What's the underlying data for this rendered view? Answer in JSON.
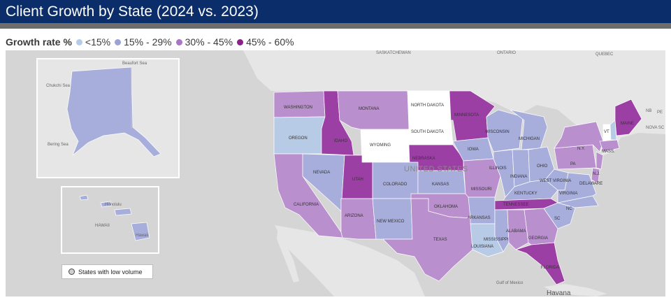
{
  "title": "Client Growth by State (2024 vs. 2023)",
  "legend": {
    "title": "Growth rate %",
    "items": [
      {
        "label": "<15%",
        "color": "#b5cce8"
      },
      {
        "label": "15% - 29%",
        "color": "#9aa3d2"
      },
      {
        "label": "30% - 45%",
        "color": "#a876c4"
      },
      {
        "label": "45% - 60%",
        "color": "#8b1f8b"
      }
    ]
  },
  "low_volume_label": "States with low volume",
  "colors": {
    "low_volume": "#ffffff",
    "t1": "#b8cbe6",
    "t2": "#a7aedb",
    "t3": "#b98fcd",
    "t4": "#9c3fa5",
    "land": "#e6e6e6",
    "water": "#d5d5d5"
  },
  "map": {
    "country_label": "UNITED STATES",
    "state_labels": {
      "washington": "WASHINGTON",
      "oregon": "OREGON",
      "idaho": "IDAHO",
      "montana": "MONTANA",
      "wyoming": "WYOMING",
      "north_dakota": "NORTH DAKOTA",
      "south_dakota": "SOUTH DAKOTA",
      "minnesota": "MINNESOTA",
      "nevada": "NEVADA",
      "utah": "UTAH",
      "colorado": "COLORADO",
      "kansas": "KANSAS",
      "nebraska": "NEBRASKA",
      "iowa": "IOWA",
      "wisconsin": "WISCONSIN",
      "michigan": "MICHIGAN",
      "illinois": "ILLINOIS",
      "indiana": "INDIANA",
      "ohio": "OHIO",
      "missouri": "MISSOURI",
      "kentucky": "KENTUCKY",
      "west_virginia": "WEST VIRGINIA",
      "virginia": "VIRGINIA",
      "pennsylvania": "PA",
      "new_york": "N.Y.",
      "maine": "MAINE",
      "vermont": "VT",
      "massachusetts": "MASS.",
      "new_jersey": "N.J.",
      "delaware": "DELAWARE",
      "california": "CALIFORNIA",
      "arizona": "ARIZONA",
      "new_mexico": "NEW MEXICO",
      "oklahoma": "OKLAHOMA",
      "texas": "TEXAS",
      "arkansas": "ARKANSAS",
      "louisiana": "LOUISIANA",
      "mississippi": "MISSISSIPPI",
      "alabama": "ALABAMA",
      "georgia": "GEORGIA",
      "florida": "FLORIDA",
      "tennessee": "TENNESSEE",
      "north_carolina": "NC",
      "south_carolina": "SC"
    },
    "geo_labels": {
      "saskatchewan": "SASKATCHEWAN",
      "ontario": "ONTARIO",
      "quebec": "QUEBEC",
      "nb": "NB",
      "pe": "PE",
      "nova_scotia": "NOVA SC",
      "gulf_of_mexico": "Gulf of Mexico",
      "havana": "Havana",
      "beaufort_sea": "Beaufort Sea",
      "chukchi_sea": "Chukchi Sea",
      "bering_sea": "Bering Sea",
      "honolulu": "Honolulu",
      "hawaii": "HAWAII",
      "hawaii_county": "Hawaii"
    }
  }
}
